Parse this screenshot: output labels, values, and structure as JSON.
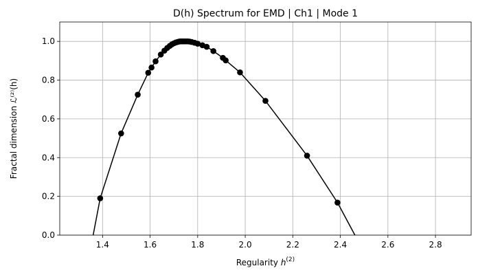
{
  "chart_data": {
    "type": "line",
    "title": "D(h) Spectrum for EMD | Ch1 | Mode 1",
    "xlabel_main": "Regularity ",
    "xlabel_sup": "(2)",
    "xlabel_var": "h",
    "ylabel": "Fractal dimension ℒ⁽²⁾(h)",
    "xlim": [
      1.22,
      2.95
    ],
    "ylim": [
      0.0,
      1.1
    ],
    "xticks": [
      1.4,
      1.6,
      1.8,
      2.0,
      2.2,
      2.4,
      2.6,
      2.8
    ],
    "xtick_labels": [
      "1.4",
      "1.6",
      "1.8",
      "2.0",
      "2.2",
      "2.4",
      "2.6",
      "2.8"
    ],
    "yticks": [
      0.0,
      0.2,
      0.4,
      0.6,
      0.8,
      1.0
    ],
    "ytick_labels": [
      "0.0",
      "0.2",
      "0.4",
      "0.6",
      "0.8",
      "1.0"
    ],
    "grid": true,
    "line_color": "#000000",
    "marker_color": "#000000",
    "series": [
      {
        "x": [
          1.345,
          1.39,
          1.478,
          1.548,
          1.592,
          1.606,
          1.623,
          1.645,
          1.66,
          1.672,
          1.683,
          1.692,
          1.7,
          1.708,
          1.715,
          1.722,
          1.728,
          1.735,
          1.742,
          1.75,
          1.758,
          1.766,
          1.775,
          1.787,
          1.8,
          1.82,
          1.838,
          1.866,
          1.906,
          1.918,
          1.978,
          2.085,
          2.26,
          2.388,
          2.47
        ],
        "y": [
          -0.1,
          0.19,
          0.525,
          0.725,
          0.838,
          0.865,
          0.897,
          0.932,
          0.952,
          0.966,
          0.977,
          0.985,
          0.99,
          0.994,
          0.997,
          0.999,
          1.0,
          1.0,
          1.0,
          1.0,
          1.0,
          0.999,
          0.997,
          0.993,
          0.988,
          0.98,
          0.972,
          0.95,
          0.915,
          0.902,
          0.84,
          0.693,
          0.41,
          0.168,
          -0.02
        ],
        "markers": [
          false,
          true,
          true,
          true,
          true,
          true,
          true,
          true,
          true,
          true,
          true,
          true,
          true,
          true,
          true,
          true,
          true,
          true,
          true,
          true,
          true,
          true,
          true,
          true,
          true,
          true,
          true,
          true,
          true,
          true,
          true,
          true,
          true,
          true,
          false
        ]
      }
    ]
  }
}
